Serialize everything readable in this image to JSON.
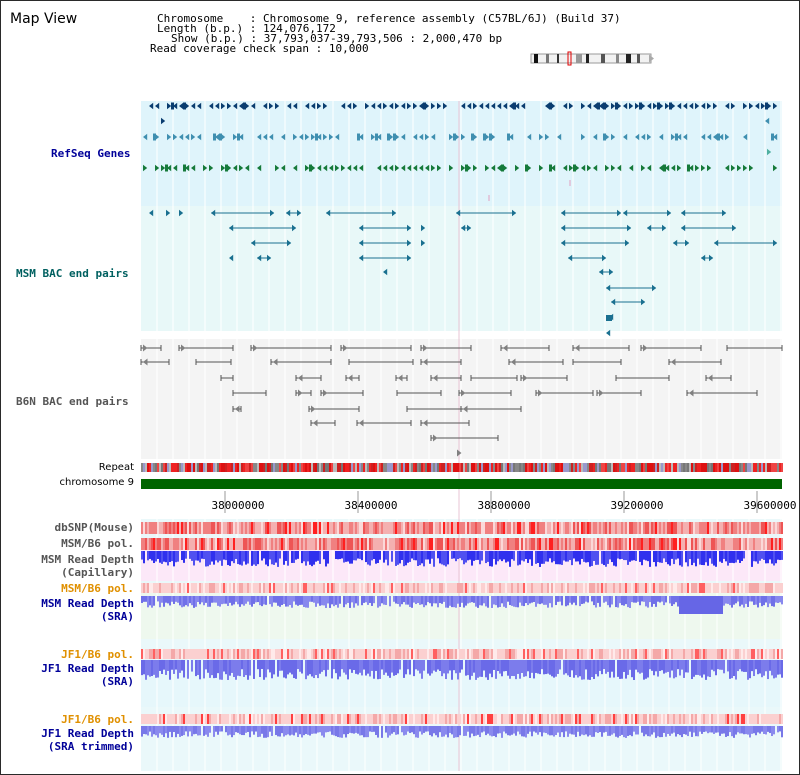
{
  "title": "Map View",
  "info": {
    "chromosome_key": "Chromosome",
    "chromosome_val": "Chromosome 9, reference assembly (C57BL/6J) (Build 37)",
    "length_key": "Length (b.p.)",
    "length_val": "124,076,172",
    "show_key": "Show (b.p.)",
    "show_val": "37,793,037-39,793,506 : 2,000,470 bp",
    "coverage_key": "Read coverage check span",
    "coverage_val": "10,000"
  },
  "tracks": {
    "refseq": "RefSeq Genes",
    "msm_bac": "MSM BAC end pairs",
    "b6n_bac": "B6N BAC end pairs",
    "repeat": "Repeat",
    "chromosome": "chromosome 9",
    "dbsnp": "dbSNP(Mouse)",
    "msm_b6_pol_1": "MSM/B6 pol.",
    "msm_depth_cap_1": "MSM Read Depth",
    "msm_depth_cap_2": "(Capillary)",
    "msm_b6_pol_2": "MSM/B6 pol.",
    "msm_depth_sra_1": "MSM Read Depth",
    "msm_depth_sra_2": "(SRA)",
    "jf1_b6_pol_1": "JF1/B6 pol.",
    "jf1_depth_sra_1": "JF1 Read Depth",
    "jf1_depth_sra_2": "(SRA)",
    "jf1_b6_pol_2": "JF1/B6 pol.",
    "jf1_depth_trim_1": "JF1 Read Depth",
    "jf1_depth_trim_2": "(SRA trimmed)"
  },
  "axis_ticks": [
    "38000000",
    "38400000",
    "38800000",
    "39200000",
    "39600000"
  ],
  "colors": {
    "refseq_dark": "#0a3d70",
    "refseq_mid": "#3f8fb0",
    "refseq_green": "#167a3a",
    "msm_bac": "#1a7090",
    "b6n_bac": "#555555",
    "chromosome_bar": "#006400",
    "label_blue": "#000099",
    "label_teal": "#006060",
    "label_gray": "#555555",
    "label_orange": "#e09000",
    "label_navy": "#000080"
  },
  "icons": [
    "chromosome-ideogram-icon"
  ]
}
